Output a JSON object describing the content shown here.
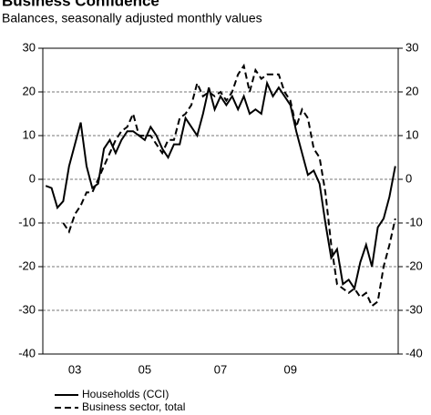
{
  "chart_data": {
    "type": "line",
    "title": "Business Confidence",
    "subtitle": "Balances, seasonally adjusted monthly values",
    "categories": [
      null,
      null,
      null,
      null,
      null,
      "03",
      null,
      null,
      null,
      null,
      null,
      null,
      null,
      null,
      null,
      null,
      null,
      "05",
      null,
      null,
      null,
      null,
      null,
      null,
      null,
      null,
      null,
      null,
      null,
      null,
      "07",
      null,
      null,
      null,
      null,
      null,
      null,
      null,
      null,
      null,
      null,
      null,
      "09",
      null,
      null,
      null,
      null,
      null,
      null,
      null,
      null,
      null,
      null,
      null,
      null,
      null,
      null,
      null,
      null,
      null,
      null
    ],
    "series": [
      {
        "name": "Households (CCI)",
        "color": "#000000",
        "dash": false,
        "values": [
          -1.5,
          -2,
          -6.5,
          -5,
          3,
          8,
          13,
          3,
          -2,
          -1,
          7,
          9,
          6,
          9,
          11,
          11,
          10,
          9,
          12,
          10,
          7,
          5,
          8,
          8,
          14,
          12,
          10,
          15,
          21,
          16,
          19,
          17,
          19,
          16,
          19,
          15,
          16,
          15,
          22,
          19,
          21,
          19,
          17,
          11,
          6,
          1,
          2,
          -1,
          -10,
          -18,
          -16,
          -24,
          -23,
          -25,
          -19,
          -15,
          -20,
          -11,
          -9,
          -4,
          3
        ]
      },
      {
        "name": "Business sector, total",
        "color": "#000000",
        "dash": true,
        "values": [
          null,
          null,
          null,
          -10,
          -12,
          -8,
          -6,
          -3,
          -3,
          0,
          3,
          6,
          9,
          11,
          12,
          15,
          10,
          10,
          10,
          8,
          6,
          9,
          9,
          14,
          15,
          17,
          22,
          19,
          20,
          19,
          20,
          18,
          20,
          24,
          26,
          20,
          25,
          23,
          24,
          24,
          24,
          20,
          18,
          12,
          16,
          14,
          7,
          5,
          -3,
          -15,
          -24,
          -25,
          -26,
          -25,
          -27,
          -26,
          -29,
          -28,
          -20,
          -15,
          -9
        ]
      }
    ],
    "ylim": [
      -40,
      30
    ],
    "yticks": [
      -40,
      -30,
      -20,
      -10,
      0,
      10,
      20,
      30
    ],
    "y2": "mirror",
    "grid": true
  }
}
